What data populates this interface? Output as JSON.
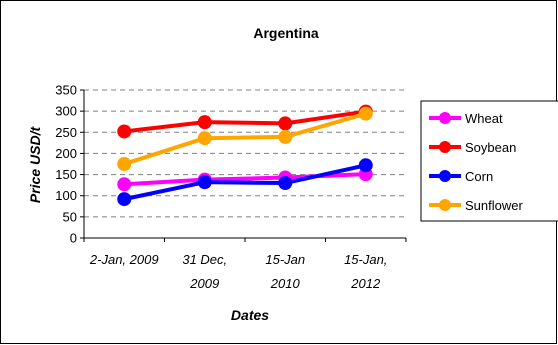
{
  "chart_data": {
    "type": "line",
    "title": "Argentina",
    "xlabel": "Dates",
    "ylabel": "Price USD/t",
    "categories": [
      [
        "2-Jan, 2009"
      ],
      [
        "31 Dec,",
        "2009"
      ],
      [
        "15-Jan",
        "2010"
      ],
      [
        "15-Jan,",
        "2012"
      ]
    ],
    "ylim": [
      0,
      350
    ],
    "yticks": [
      0,
      50,
      100,
      150,
      200,
      250,
      300,
      350
    ],
    "grid": true,
    "legend_position": "right",
    "series": [
      {
        "name": "Wheat",
        "color": "#ff00ff",
        "values": [
          127,
          138,
          143,
          151
        ]
      },
      {
        "name": "Soybean",
        "color": "#ff0000",
        "values": [
          252,
          274,
          271,
          299
        ]
      },
      {
        "name": "Corn",
        "color": "#0000ff",
        "values": [
          92,
          132,
          130,
          172
        ]
      },
      {
        "name": "Sunflower",
        "color": "#ffa500",
        "values": [
          175,
          236,
          239,
          294
        ]
      }
    ]
  }
}
